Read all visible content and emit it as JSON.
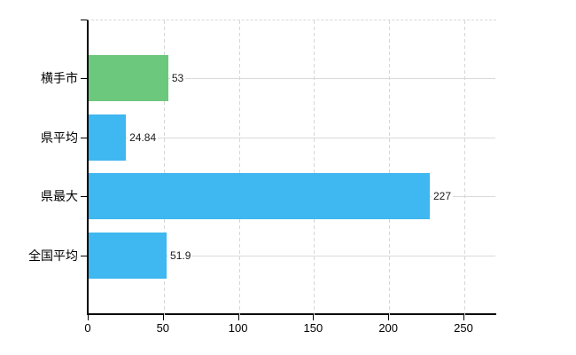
{
  "chart_data": {
    "type": "bar",
    "orientation": "horizontal",
    "title": "",
    "xlabel": "",
    "ylabel": "",
    "categories": [
      "横手市",
      "県平均",
      "県最大",
      "全国平均"
    ],
    "values": [
      53,
      24.84,
      227,
      51.9
    ],
    "value_labels": [
      "53",
      "24.84",
      "227",
      "51.9"
    ],
    "bar_colors": [
      "#6cc87d",
      "#3fb7f0",
      "#3fb7f0",
      "#3fb7f0"
    ],
    "x_ticks": [
      0,
      50,
      100,
      150,
      200,
      250
    ],
    "x_tick_labels": [
      "0",
      "50",
      "100",
      "150",
      "200",
      "250"
    ],
    "xlim": [
      0,
      271.5
    ],
    "grid": true,
    "legend_position": "none"
  },
  "colors": {
    "bar_green": "#6cc87d",
    "bar_blue": "#3fb7f0",
    "grid": "#d6d6d6",
    "axis": "#000000",
    "text": "#000000",
    "background": "#ffffff"
  }
}
